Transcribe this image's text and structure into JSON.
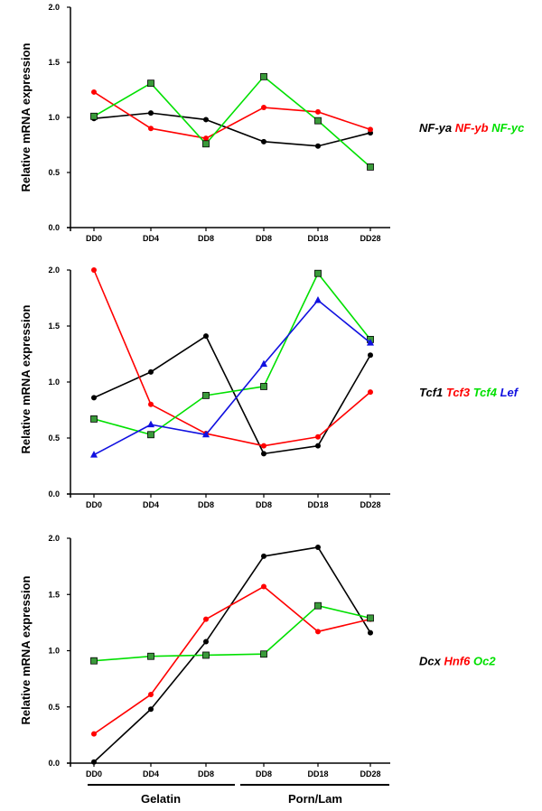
{
  "chart_data": [
    {
      "type": "line",
      "ylabel": "Relative mRNA expression",
      "ylim": [
        0,
        2.0
      ],
      "yticks": [
        "0.0",
        "0.5",
        "1.0",
        "1.5",
        "2.0"
      ],
      "categories": [
        "DD0",
        "DD4",
        "DD8",
        "DD8",
        "DD18",
        "DD28"
      ],
      "series": [
        {
          "name": "NF-ya",
          "color": "#000000",
          "marker": "circle",
          "values": [
            0.99,
            1.04,
            0.98,
            0.78,
            0.74,
            0.86
          ]
        },
        {
          "name": "NF-yb",
          "color": "#ff0000",
          "marker": "circle",
          "values": [
            1.23,
            0.9,
            0.81,
            1.09,
            1.05,
            0.89
          ]
        },
        {
          "name": "NF-yc",
          "color": "#00e000",
          "marker": "square",
          "values": [
            1.01,
            1.31,
            0.76,
            1.37,
            0.97,
            0.55
          ]
        }
      ]
    },
    {
      "type": "line",
      "ylabel": "Relative mRNA expression",
      "ylim": [
        0,
        2.0
      ],
      "yticks": [
        "0.0",
        "0.5",
        "1.0",
        "1.5",
        "2.0"
      ],
      "categories": [
        "DD0",
        "DD4",
        "DD8",
        "DD8",
        "DD18",
        "DD28"
      ],
      "series": [
        {
          "name": "Tcf1",
          "color": "#000000",
          "marker": "circle",
          "values": [
            0.86,
            1.09,
            1.41,
            0.36,
            0.43,
            1.24
          ]
        },
        {
          "name": "Tcf3",
          "color": "#ff0000",
          "marker": "circle",
          "values": [
            2.0,
            0.8,
            0.54,
            0.43,
            0.51,
            0.91
          ]
        },
        {
          "name": "Tcf4",
          "color": "#00e000",
          "marker": "square",
          "values": [
            0.67,
            0.53,
            0.88,
            0.96,
            1.97,
            1.38
          ]
        },
        {
          "name": "Lef",
          "color": "#1010e0",
          "marker": "triangle",
          "values": [
            0.35,
            0.62,
            0.53,
            1.16,
            1.73,
            1.35
          ]
        }
      ]
    },
    {
      "type": "line",
      "ylabel": "Relative mRNA expression",
      "ylim": [
        0,
        2.0
      ],
      "yticks": [
        "0.0",
        "0.5",
        "1.0",
        "1.5",
        "2.0"
      ],
      "categories": [
        "DD0",
        "DD4",
        "DD8",
        "DD8",
        "DD18",
        "DD28"
      ],
      "series": [
        {
          "name": "Dcx",
          "color": "#000000",
          "marker": "circle",
          "values": [
            0.01,
            0.48,
            1.08,
            1.84,
            1.92,
            1.16
          ]
        },
        {
          "name": "Hnf6",
          "color": "#ff0000",
          "marker": "circle",
          "values": [
            0.26,
            0.61,
            1.28,
            1.57,
            1.17,
            1.28
          ]
        },
        {
          "name": "Oc2",
          "color": "#00e000",
          "marker": "square",
          "values": [
            0.91,
            0.95,
            0.96,
            0.97,
            1.4,
            1.29
          ]
        }
      ]
    }
  ],
  "groups": [
    {
      "label": "Gelatin"
    },
    {
      "label": "Porn/Lam"
    }
  ]
}
